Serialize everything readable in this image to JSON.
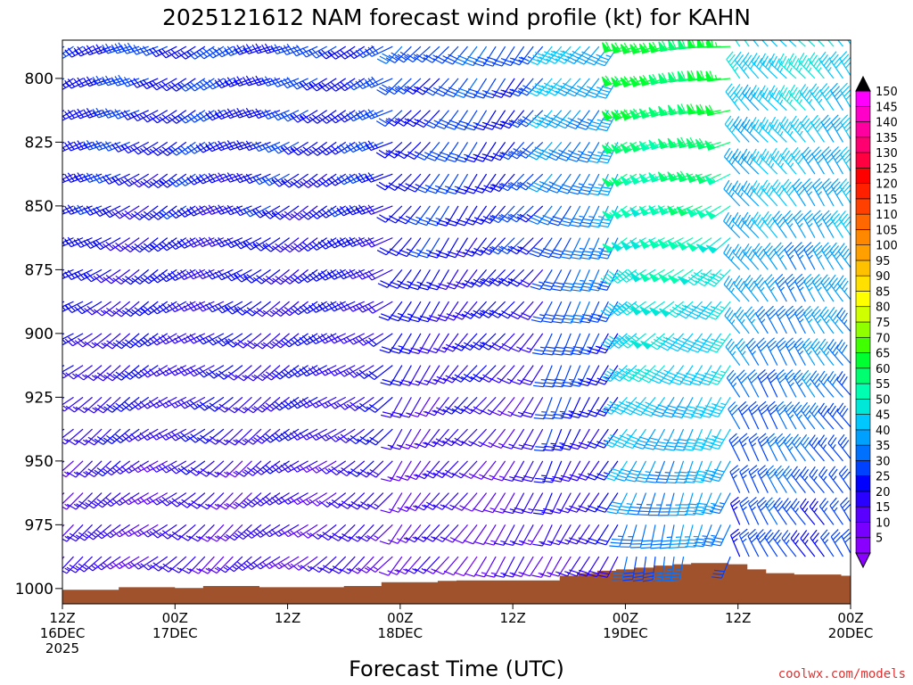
{
  "chart_data": {
    "type": "wind-barb-profile",
    "title": "2025121612 NAM forecast wind profile (kt) for KAHN",
    "xlabel": "Forecast Time (UTC)",
    "ylabel": "",
    "units": "kt",
    "credit": "coolwx.com/models",
    "y_axis": {
      "range_hpa": [
        1006,
        785
      ],
      "ticks": [
        800,
        825,
        850,
        875,
        900,
        925,
        950,
        975,
        1000
      ]
    },
    "x_axis": {
      "range_hours": [
        0,
        84
      ],
      "ticks": [
        {
          "hour": 0,
          "line1": "12Z",
          "line2": "16DEC",
          "line3": "2025"
        },
        {
          "hour": 12,
          "line1": "00Z",
          "line2": "17DEC"
        },
        {
          "hour": 24,
          "line1": "12Z",
          "line2": ""
        },
        {
          "hour": 36,
          "line1": "00Z",
          "line2": "18DEC"
        },
        {
          "hour": 48,
          "line1": "12Z",
          "line2": ""
        },
        {
          "hour": 60,
          "line1": "00Z",
          "line2": "19DEC"
        },
        {
          "hour": 72,
          "line1": "12Z",
          "line2": ""
        },
        {
          "hour": 84,
          "line1": "00Z",
          "line2": "20DEC"
        }
      ]
    },
    "color_scale": {
      "labels": [
        150,
        145,
        140,
        135,
        130,
        125,
        120,
        115,
        110,
        105,
        100,
        95,
        90,
        85,
        80,
        75,
        70,
        65,
        60,
        55,
        50,
        45,
        40,
        35,
        30,
        25,
        20,
        15,
        10,
        5
      ],
      "bins": [
        {
          "min": 0,
          "max": 5,
          "color": "#8a00ff"
        },
        {
          "min": 5,
          "max": 10,
          "color": "#7800ff"
        },
        {
          "min": 10,
          "max": 15,
          "color": "#5a00ff"
        },
        {
          "min": 15,
          "max": 20,
          "color": "#2a00ff"
        },
        {
          "min": 20,
          "max": 25,
          "color": "#0000ff"
        },
        {
          "min": 25,
          "max": 30,
          "color": "#0040ff"
        },
        {
          "min": 30,
          "max": 35,
          "color": "#0070ff"
        },
        {
          "min": 35,
          "max": 40,
          "color": "#00a0ff"
        },
        {
          "min": 40,
          "max": 45,
          "color": "#00c8ff"
        },
        {
          "min": 45,
          "max": 50,
          "color": "#00e8d8"
        },
        {
          "min": 50,
          "max": 55,
          "color": "#00ffb0"
        },
        {
          "min": 55,
          "max": 60,
          "color": "#00ff70"
        },
        {
          "min": 60,
          "max": 65,
          "color": "#00ff30"
        },
        {
          "min": 65,
          "max": 70,
          "color": "#40ff00"
        },
        {
          "min": 70,
          "max": 75,
          "color": "#90ff00"
        },
        {
          "min": 75,
          "max": 80,
          "color": "#d0ff00"
        },
        {
          "min": 80,
          "max": 85,
          "color": "#ffff00"
        },
        {
          "min": 85,
          "max": 90,
          "color": "#ffe000"
        },
        {
          "min": 90,
          "max": 95,
          "color": "#ffc000"
        },
        {
          "min": 95,
          "max": 100,
          "color": "#ffa000"
        },
        {
          "min": 100,
          "max": 105,
          "color": "#ff8800"
        },
        {
          "min": 105,
          "max": 110,
          "color": "#ff6800"
        },
        {
          "min": 110,
          "max": 115,
          "color": "#ff4000"
        },
        {
          "min": 115,
          "max": 120,
          "color": "#ff2000"
        },
        {
          "min": 120,
          "max": 125,
          "color": "#ff0000"
        },
        {
          "min": 125,
          "max": 130,
          "color": "#ff0040"
        },
        {
          "min": 130,
          "max": 135,
          "color": "#ff0070"
        },
        {
          "min": 135,
          "max": 140,
          "color": "#ff00a0"
        },
        {
          "min": 140,
          "max": 145,
          "color": "#ff00c8"
        },
        {
          "min": 145,
          "max": 150,
          "color": "#ff00ff"
        }
      ]
    },
    "terrain_color": "#a0522d",
    "surface_pressure": [
      {
        "hour": 0,
        "hpa": 1000.5
      },
      {
        "hour": 6,
        "hpa": 999.5
      },
      {
        "hour": 12,
        "hpa": 999.8
      },
      {
        "hour": 15,
        "hpa": 999
      },
      {
        "hour": 21,
        "hpa": 999.5
      },
      {
        "hour": 24,
        "hpa": 999.5
      },
      {
        "hour": 27,
        "hpa": 999.5
      },
      {
        "hour": 30,
        "hpa": 999
      },
      {
        "hour": 34,
        "hpa": 997.5
      },
      {
        "hour": 36,
        "hpa": 997.5
      },
      {
        "hour": 40,
        "hpa": 997
      },
      {
        "hour": 42,
        "hpa": 996.8
      },
      {
        "hour": 46,
        "hpa": 996.8
      },
      {
        "hour": 50,
        "hpa": 996.8
      },
      {
        "hour": 53,
        "hpa": 995
      },
      {
        "hour": 55,
        "hpa": 994
      },
      {
        "hour": 57,
        "hpa": 993
      },
      {
        "hour": 59,
        "hpa": 992.5
      },
      {
        "hour": 61,
        "hpa": 991.8
      },
      {
        "hour": 63,
        "hpa": 991
      },
      {
        "hour": 65,
        "hpa": 990.5
      },
      {
        "hour": 67,
        "hpa": 990
      },
      {
        "hour": 69,
        "hpa": 990
      },
      {
        "hour": 71,
        "hpa": 990.5
      },
      {
        "hour": 73,
        "hpa": 992.5
      },
      {
        "hour": 75,
        "hpa": 994
      },
      {
        "hour": 78,
        "hpa": 994.5
      },
      {
        "hour": 81,
        "hpa": 994.5
      },
      {
        "hour": 83,
        "hpa": 995
      },
      {
        "hour": 84,
        "hpa": 996
      }
    ],
    "wind_phases": [
      {
        "until_hour": 36,
        "spd_base": 15,
        "spd_top": 25,
        "dir_base": 230,
        "dir_top": 245
      },
      {
        "until_hour": 52,
        "spd_base": 12,
        "spd_top": 28,
        "dir_base": 215,
        "dir_top": 220
      },
      {
        "until_hour": 60,
        "spd_base": 15,
        "spd_top": 40,
        "dir_base": 205,
        "dir_top": 215
      },
      {
        "until_hour": 72,
        "spd_base": 30,
        "spd_top": 62,
        "dir_base": 190,
        "dir_top": 260
      },
      {
        "until_hour": 84,
        "spd_base": 25,
        "spd_top": 45,
        "dir_base": 330,
        "dir_top": 320
      }
    ],
    "time_step_hours": 1,
    "pressure_step_hpa": 12.5
  }
}
